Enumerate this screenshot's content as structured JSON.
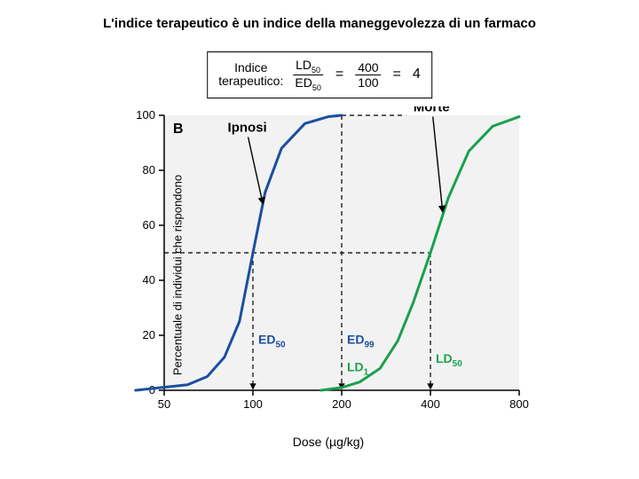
{
  "title": "L'indice terapeutico è un indice della maneggevolezza di un farmaco",
  "formula": {
    "label_line1": "Indice",
    "label_line2": "terapeutico:",
    "frac1_num": "LD",
    "frac1_num_sub": "50",
    "frac1_den": "ED",
    "frac1_den_sub": "50",
    "frac2_num": "400",
    "frac2_den": "100",
    "result": "4"
  },
  "chart": {
    "panel_letter": "B",
    "ylabel": "Percentuale di individui che rispondono",
    "xlabel": "Dose (µg/kg)",
    "background": "#f2f2f2",
    "axis_color": "#000000",
    "tick_color": "#000000",
    "dash_color": "#000000",
    "ipnosi_color": "#1a4fa0",
    "morte_color": "#1aa04f",
    "tick_fontsize": 13,
    "line_width": 3,
    "ylim": [
      0,
      100
    ],
    "yticks": [
      0,
      20,
      40,
      60,
      80,
      100
    ],
    "xticks": [
      "50",
      "100",
      "200",
      "400",
      "800"
    ],
    "xtick_positions_log": [
      50,
      100,
      200,
      400,
      800
    ],
    "curve_ipnosi": [
      [
        40,
        0
      ],
      [
        60,
        2
      ],
      [
        70,
        5
      ],
      [
        80,
        12
      ],
      [
        90,
        25
      ],
      [
        100,
        50
      ],
      [
        110,
        72
      ],
      [
        125,
        88
      ],
      [
        150,
        97
      ],
      [
        180,
        99.5
      ],
      [
        200,
        100
      ]
    ],
    "curve_morte": [
      [
        170,
        0
      ],
      [
        200,
        1
      ],
      [
        230,
        3
      ],
      [
        270,
        8
      ],
      [
        310,
        18
      ],
      [
        350,
        32
      ],
      [
        400,
        50
      ],
      [
        460,
        70
      ],
      [
        540,
        87
      ],
      [
        650,
        96
      ],
      [
        800,
        99.5
      ]
    ],
    "annotations": {
      "ipnosi": "Ipnosi",
      "morte": "Morte"
    },
    "markers": {
      "ED50": {
        "text": "ED",
        "sub": "50",
        "dose": 100,
        "color": "#1a4fa0"
      },
      "ED99": {
        "text": "ED",
        "sub": "99",
        "dose": 200,
        "color": "#1a4fa0"
      },
      "LD1": {
        "text": "LD",
        "sub": "1",
        "dose": 200,
        "color": "#1aa04f"
      },
      "LD50": {
        "text": "LD",
        "sub": "50",
        "dose": 400,
        "color": "#1aa04f"
      }
    },
    "dashed_lines": {
      "horizontal_50": 50,
      "horizontal_100": 100,
      "vertical_positions": [
        100,
        200,
        400
      ]
    }
  }
}
